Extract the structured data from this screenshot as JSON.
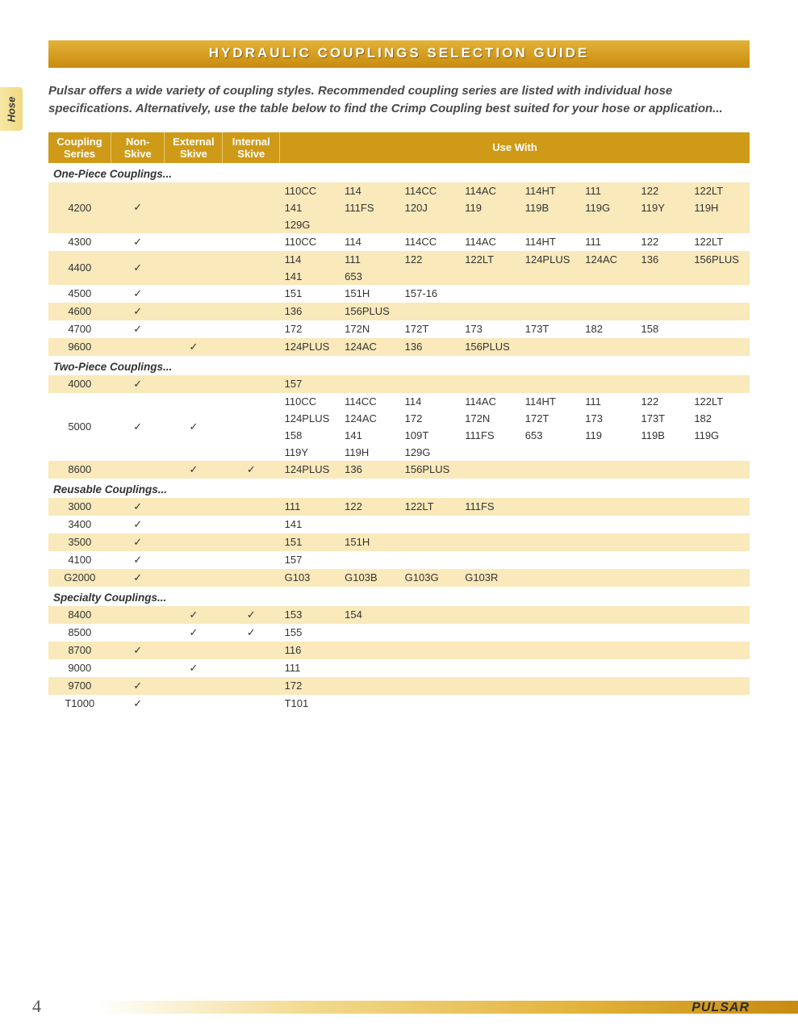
{
  "title": "HYDRAULIC COUPLINGS SELECTION GUIDE",
  "sideTab": "Hose",
  "intro": "Pulsar offers a wide variety of coupling styles. Recommended coupling series are listed with individual hose specifications. Alternatively, use the table below to find the Crimp Coupling best suited for your hose or application...",
  "columns": {
    "coupling": "Coupling Series",
    "nonSkive": "Non-Skive",
    "extSkive": "External Skive",
    "intSkive": "Internal Skive",
    "useWith": "Use With"
  },
  "useWithColCount": 8,
  "checkMark": "✓",
  "sections": [
    {
      "label": "One-Piece Couplings...",
      "rows": [
        {
          "series": "4200",
          "nonSkive": true,
          "extSkive": false,
          "intSkive": false,
          "tint": true,
          "use": [
            "110CC",
            "114",
            "114CC",
            "114AC",
            "114HT",
            "111",
            "122",
            "122LT",
            "141",
            "111FS",
            "120J",
            "119",
            "119B",
            "119G",
            "119Y",
            "119H",
            "129G"
          ]
        },
        {
          "series": "4300",
          "nonSkive": true,
          "extSkive": false,
          "intSkive": false,
          "tint": false,
          "use": [
            "110CC",
            "114",
            "114CC",
            "114AC",
            "114HT",
            "111",
            "122",
            "122LT"
          ]
        },
        {
          "series": "4400",
          "nonSkive": true,
          "extSkive": false,
          "intSkive": false,
          "tint": true,
          "use": [
            "114",
            "111",
            "122",
            "122LT",
            "124PLUS",
            "124AC",
            "136",
            "156PLUS",
            "141",
            "653"
          ]
        },
        {
          "series": "4500",
          "nonSkive": true,
          "extSkive": false,
          "intSkive": false,
          "tint": false,
          "use": [
            "151",
            "151H",
            "157-16"
          ]
        },
        {
          "series": "4600",
          "nonSkive": true,
          "extSkive": false,
          "intSkive": false,
          "tint": true,
          "use": [
            "136",
            "156PLUS"
          ]
        },
        {
          "series": "4700",
          "nonSkive": true,
          "extSkive": false,
          "intSkive": false,
          "tint": false,
          "use": [
            "172",
            "172N",
            "172T",
            "173",
            "173T",
            "182",
            "158"
          ]
        },
        {
          "series": "9600",
          "nonSkive": false,
          "extSkive": true,
          "intSkive": false,
          "tint": true,
          "use": [
            "124PLUS",
            "124AC",
            "136",
            "156PLUS"
          ]
        }
      ]
    },
    {
      "label": "Two-Piece Couplings...",
      "rows": [
        {
          "series": "4000",
          "nonSkive": true,
          "extSkive": false,
          "intSkive": false,
          "tint": true,
          "use": [
            "157"
          ]
        },
        {
          "series": "5000",
          "nonSkive": true,
          "extSkive": true,
          "intSkive": false,
          "tint": false,
          "use": [
            "110CC",
            "114CC",
            "114",
            "114AC",
            "114HT",
            "111",
            "122",
            "122LT",
            "124PLUS",
            "124AC",
            "172",
            "172N",
            "172T",
            "173",
            "173T",
            "182",
            "158",
            "141",
            "109T",
            "111FS",
            "653",
            "119",
            "119B",
            "119G",
            "119Y",
            "119H",
            "129G"
          ]
        },
        {
          "series": "8600",
          "nonSkive": false,
          "extSkive": true,
          "intSkive": true,
          "tint": true,
          "use": [
            "124PLUS",
            "136",
            "156PLUS"
          ]
        }
      ]
    },
    {
      "label": "Reusable Couplings...",
      "rows": [
        {
          "series": "3000",
          "nonSkive": true,
          "extSkive": false,
          "intSkive": false,
          "tint": true,
          "use": [
            "111",
            "122",
            "122LT",
            "111FS"
          ]
        },
        {
          "series": "3400",
          "nonSkive": true,
          "extSkive": false,
          "intSkive": false,
          "tint": false,
          "use": [
            "141"
          ]
        },
        {
          "series": "3500",
          "nonSkive": true,
          "extSkive": false,
          "intSkive": false,
          "tint": true,
          "use": [
            "151",
            "151H"
          ]
        },
        {
          "series": "4100",
          "nonSkive": true,
          "extSkive": false,
          "intSkive": false,
          "tint": false,
          "use": [
            "157"
          ]
        },
        {
          "series": "G2000",
          "nonSkive": true,
          "extSkive": false,
          "intSkive": false,
          "tint": true,
          "use": [
            "G103",
            "G103B",
            "G103G",
            "G103R"
          ]
        }
      ]
    },
    {
      "label": "Specialty Couplings...",
      "rows": [
        {
          "series": "8400",
          "nonSkive": false,
          "extSkive": true,
          "intSkive": true,
          "tint": true,
          "use": [
            "153",
            "154"
          ]
        },
        {
          "series": "8500",
          "nonSkive": false,
          "extSkive": true,
          "intSkive": true,
          "tint": false,
          "use": [
            "155"
          ]
        },
        {
          "series": "8700",
          "nonSkive": true,
          "extSkive": false,
          "intSkive": false,
          "tint": true,
          "use": [
            "116"
          ]
        },
        {
          "series": "9000",
          "nonSkive": false,
          "extSkive": true,
          "intSkive": false,
          "tint": false,
          "use": [
            "111"
          ]
        },
        {
          "series": "9700",
          "nonSkive": true,
          "extSkive": false,
          "intSkive": false,
          "tint": true,
          "use": [
            "172"
          ]
        },
        {
          "series": "T1000",
          "nonSkive": true,
          "extSkive": false,
          "intSkive": false,
          "tint": false,
          "use": [
            "T101"
          ]
        }
      ]
    }
  ],
  "footer": {
    "pageNumber": "4",
    "brand": "PULSAR"
  },
  "colors": {
    "headerBg": "#cf9a17",
    "tintRow": "#f9e9bb",
    "titleBarTop": "#e2b23a",
    "titleBarBottom": "#c78b10"
  }
}
